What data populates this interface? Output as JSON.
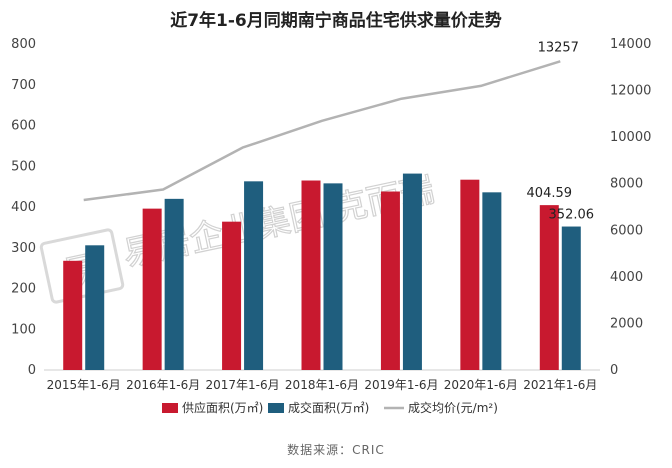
{
  "title": "近7年1-6月同期南宁商品住宅供求量价走势",
  "source_note": "数据来源：CRIC",
  "watermark": {
    "brand_text": "易居企业集团·克而瑞",
    "logo_char": "易"
  },
  "colors": {
    "supply": "#c8192f",
    "transaction": "#1f5e7e",
    "price": "#b3b3b3",
    "axis_text": "#444444"
  },
  "chart_data": {
    "type": "bar",
    "title": "近7年1-6月同期南宁商品住宅供求量价走势",
    "categories": [
      "2015年1-6月",
      "2016年1-6月",
      "2017年1-6月",
      "2018年1-6月",
      "2019年1-6月",
      "2020年1-6月",
      "2021年1-6月"
    ],
    "series": [
      {
        "name": "供应面积(万㎡)",
        "type": "bar",
        "axis": "left",
        "values": [
          268,
          396,
          364,
          465,
          438,
          467,
          404.59
        ]
      },
      {
        "name": "成交面积(万㎡)",
        "type": "bar",
        "axis": "left",
        "values": [
          306,
          420,
          463,
          458,
          482,
          436,
          352.06
        ]
      },
      {
        "name": "成交均价(元/m²)",
        "type": "line",
        "axis": "right",
        "values": [
          7300,
          7750,
          9550,
          10700,
          11650,
          12200,
          13257
        ]
      }
    ],
    "data_labels": [
      {
        "series": 0,
        "index": 6,
        "text": "404.59"
      },
      {
        "series": 1,
        "index": 6,
        "text": "352.06"
      },
      {
        "series": 2,
        "index": 6,
        "text": "13257"
      }
    ],
    "y_left": {
      "min": 0,
      "max": 800,
      "ticks": [
        0,
        100,
        200,
        300,
        400,
        500,
        600,
        700,
        800
      ]
    },
    "y_right": {
      "min": 0,
      "max": 14000,
      "ticks": [
        0,
        2000,
        4000,
        6000,
        8000,
        10000,
        12000,
        14000
      ]
    },
    "grid": false,
    "legend_position": "bottom"
  }
}
